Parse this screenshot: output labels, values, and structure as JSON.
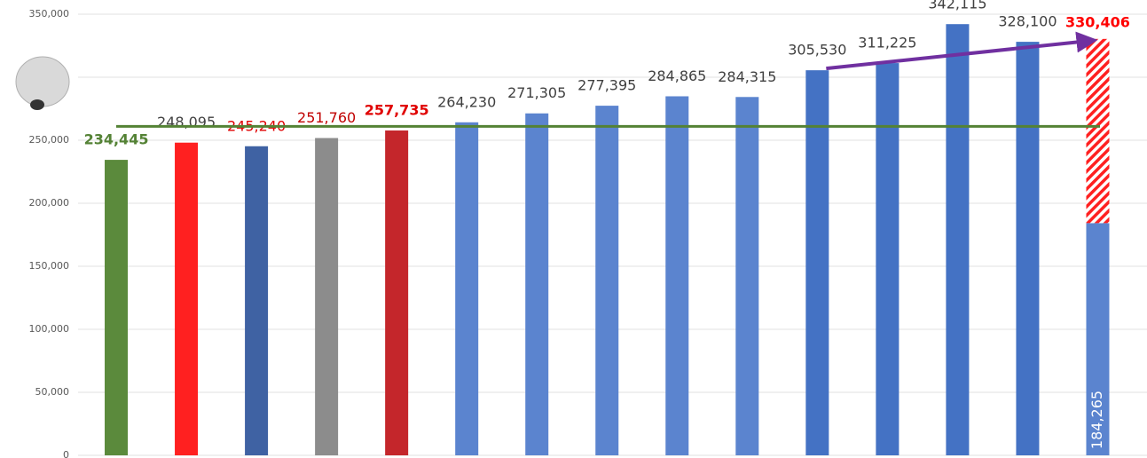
{
  "chart_data": {
    "type": "bar",
    "categories": [
      null,
      null,
      null,
      null,
      null,
      null,
      null,
      null,
      null,
      null,
      null,
      null,
      null,
      null,
      null
    ],
    "values": [
      234445,
      248095,
      245240,
      251760,
      257735,
      264230,
      271305,
      277395,
      284865,
      284315,
      305530,
      311225,
      342115,
      328100,
      184265
    ],
    "value_labels": [
      "234,445",
      "248,095",
      "245,240",
      "251,760",
      "257,735",
      "264,230",
      "271,305",
      "277,395",
      "284,865",
      "284,315",
      "305,530",
      "311,225",
      "342,115",
      "328,100",
      "184,265"
    ],
    "colors": [
      "#5b8a3c",
      "#ff2020",
      "#3f62a3",
      "#8c8c8c",
      "#c4262b",
      "#5b84cf",
      "#5b84cf",
      "#5b84cf",
      "#5b84cf",
      "#5b84cf",
      "#4472c4",
      "#4472c4",
      "#4472c4",
      "#4472c4",
      "#5b84cf"
    ],
    "label_colors": [
      "#548235",
      "#404040",
      "#e00000",
      "#c00000",
      "#e00000",
      "#404040",
      "#404040",
      "#404040",
      "#404040",
      "#404040",
      "#404040",
      "#404040",
      "#404040",
      "#404040",
      "#ffffff"
    ],
    "label_bold": [
      true,
      false,
      false,
      false,
      true,
      false,
      false,
      false,
      false,
      false,
      false,
      false,
      false,
      false,
      false
    ],
    "projection": {
      "value": 330406,
      "label": "330,406",
      "color": "#ff0000"
    },
    "reference_line": {
      "value": 261000,
      "color": "#548235"
    },
    "trend_color": "#7030a0",
    "ylim": [
      0,
      350000
    ],
    "yticks": [
      {
        "value": 0,
        "label": "0"
      },
      {
        "value": 50000,
        "label": "50,000"
      },
      {
        "value": 100000,
        "label": "100,000"
      },
      {
        "value": 150000,
        "label": "150,000"
      },
      {
        "value": 200000,
        "label": "200,000"
      },
      {
        "value": 250000,
        "label": "250,000"
      },
      {
        "value": 300000,
        "label": "300,000"
      },
      {
        "value": 350000,
        "label": "350,000"
      }
    ],
    "grid": true
  }
}
